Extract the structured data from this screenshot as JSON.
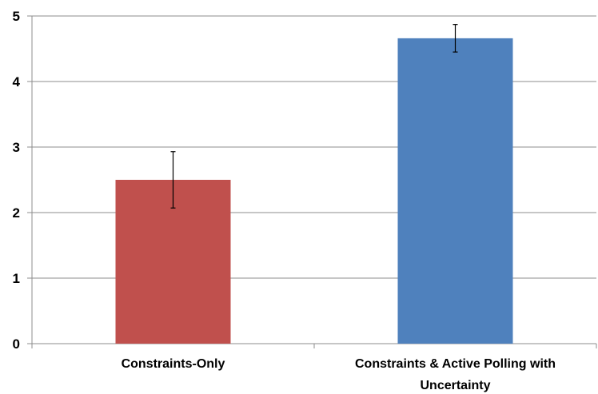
{
  "chart_data": {
    "type": "bar",
    "categories": [
      [
        "Constraints-Only"
      ],
      [
        "Constraints & Active Polling with",
        "Uncertainty"
      ]
    ],
    "values": [
      2.5,
      4.66
    ],
    "error_bars": [
      {
        "low": 2.07,
        "high": 2.93
      },
      {
        "low": 4.45,
        "high": 4.87
      }
    ],
    "colors": [
      "#c0504d",
      "#4f81bd"
    ],
    "ylim": [
      0,
      5
    ],
    "yticks": [
      "0",
      "1",
      "2",
      "3",
      "4",
      "5"
    ],
    "grid": true,
    "title": "",
    "xlabel": "",
    "ylabel": ""
  }
}
